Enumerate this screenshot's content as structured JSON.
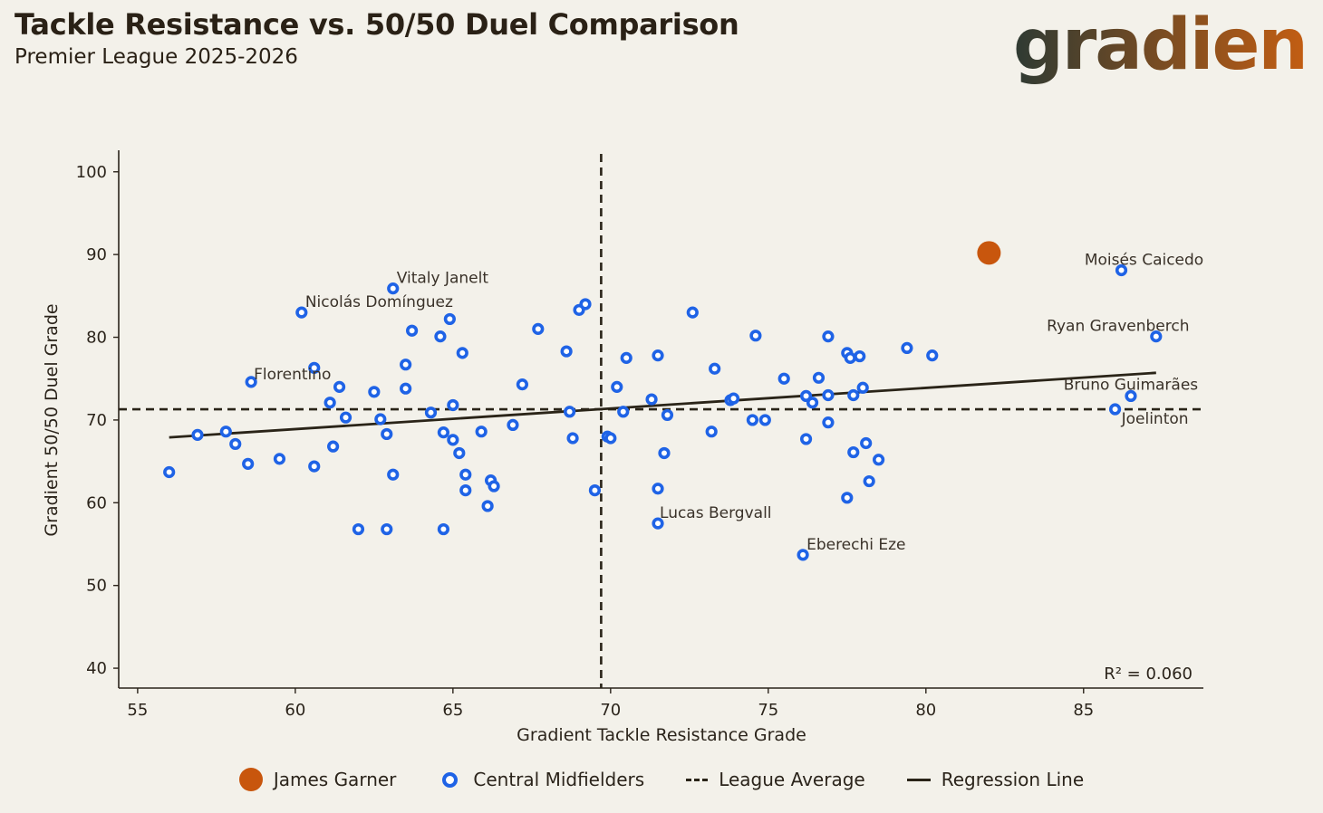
{
  "header": {
    "title": "Tackle Resistance vs. 50/50 Duel Comparison",
    "subtitle": "Premier League 2025-2026",
    "logo_text": "gradient",
    "logo_colors": [
      "#2e3a33",
      "#d4620f"
    ]
  },
  "colors": {
    "highlight": "#c8560d",
    "midfielder": "#1f63e6",
    "reference_line": "#2a2418",
    "background": "#f3f1ea"
  },
  "chart_data": {
    "type": "scatter",
    "xlabel": "Gradient Tackle Resistance Grade",
    "ylabel": "Gradient 50/50 Duel Grade",
    "xlim": [
      54.4,
      88.8
    ],
    "ylim": [
      37.6,
      102.6
    ],
    "xticks": [
      55,
      60,
      65,
      70,
      75,
      80,
      85
    ],
    "yticks": [
      40,
      50,
      60,
      70,
      80,
      90,
      100
    ],
    "league_average": {
      "x": 69.7,
      "y": 71.3
    },
    "regression": {
      "x_start": 56.0,
      "y_start": 67.9,
      "x_end": 87.3,
      "y_end": 75.7
    },
    "r_squared_label": "R² = 0.060",
    "highlight": {
      "name": "James Garner",
      "x": 82.0,
      "y": 90.2
    },
    "series": [
      {
        "name": "Central Midfielders",
        "points": [
          [
            56.0,
            63.7
          ],
          [
            56.9,
            68.2
          ],
          [
            57.8,
            68.6
          ],
          [
            58.1,
            67.1
          ],
          [
            58.5,
            64.7
          ],
          [
            58.6,
            74.6
          ],
          [
            59.5,
            65.3
          ],
          [
            60.2,
            83.0
          ],
          [
            60.6,
            76.3
          ],
          [
            60.6,
            64.4
          ],
          [
            61.1,
            72.1
          ],
          [
            61.2,
            66.8
          ],
          [
            61.4,
            74.0
          ],
          [
            61.6,
            70.3
          ],
          [
            62.0,
            56.8
          ],
          [
            62.5,
            73.4
          ],
          [
            62.7,
            70.1
          ],
          [
            62.9,
            68.3
          ],
          [
            62.9,
            56.8
          ],
          [
            63.1,
            85.9
          ],
          [
            63.1,
            63.4
          ],
          [
            63.5,
            76.7
          ],
          [
            63.5,
            73.8
          ],
          [
            63.7,
            80.8
          ],
          [
            64.3,
            70.9
          ],
          [
            64.6,
            80.1
          ],
          [
            64.7,
            68.5
          ],
          [
            64.7,
            56.8
          ],
          [
            64.9,
            82.2
          ],
          [
            65.0,
            71.8
          ],
          [
            65.0,
            67.6
          ],
          [
            65.2,
            66.0
          ],
          [
            65.3,
            78.1
          ],
          [
            65.4,
            63.4
          ],
          [
            65.4,
            61.5
          ],
          [
            65.9,
            68.6
          ],
          [
            66.1,
            59.6
          ],
          [
            66.2,
            62.7
          ],
          [
            66.3,
            62.0
          ],
          [
            66.9,
            69.4
          ],
          [
            67.2,
            74.3
          ],
          [
            67.7,
            81.0
          ],
          [
            68.6,
            78.3
          ],
          [
            68.7,
            71.0
          ],
          [
            68.8,
            67.8
          ],
          [
            69.0,
            83.3
          ],
          [
            69.2,
            84.0
          ],
          [
            69.5,
            61.5
          ],
          [
            69.9,
            68.0
          ],
          [
            70.0,
            67.8
          ],
          [
            70.2,
            74.0
          ],
          [
            70.4,
            71.0
          ],
          [
            70.5,
            77.5
          ],
          [
            71.3,
            72.5
          ],
          [
            71.5,
            77.8
          ],
          [
            71.5,
            61.7
          ],
          [
            71.5,
            57.5
          ],
          [
            71.7,
            66.0
          ],
          [
            71.8,
            70.6
          ],
          [
            72.6,
            83.0
          ],
          [
            73.2,
            68.6
          ],
          [
            73.3,
            76.2
          ],
          [
            73.8,
            72.4
          ],
          [
            73.9,
            72.6
          ],
          [
            74.5,
            70.0
          ],
          [
            74.6,
            80.2
          ],
          [
            74.9,
            70.0
          ],
          [
            75.5,
            75.0
          ],
          [
            76.1,
            53.7
          ],
          [
            76.2,
            72.9
          ],
          [
            76.2,
            67.7
          ],
          [
            76.4,
            72.1
          ],
          [
            76.6,
            75.1
          ],
          [
            76.9,
            80.1
          ],
          [
            76.9,
            73.0
          ],
          [
            76.9,
            69.7
          ],
          [
            77.5,
            78.1
          ],
          [
            77.5,
            60.6
          ],
          [
            77.6,
            77.5
          ],
          [
            77.7,
            73.0
          ],
          [
            77.7,
            66.1
          ],
          [
            77.9,
            77.7
          ],
          [
            78.0,
            73.9
          ],
          [
            78.1,
            67.2
          ],
          [
            78.2,
            62.6
          ],
          [
            78.5,
            65.2
          ],
          [
            79.4,
            78.7
          ],
          [
            80.2,
            77.8
          ],
          [
            86.0,
            71.3
          ],
          [
            86.2,
            88.1
          ],
          [
            86.5,
            72.9
          ],
          [
            87.3,
            80.1
          ]
        ]
      }
    ],
    "annotations": [
      {
        "label": "Vitaly Janelt",
        "x": 63.1,
        "y": 85.9
      },
      {
        "label": "Nicolás Domínguez",
        "x": 60.2,
        "y": 83.0
      },
      {
        "label": "Florentino",
        "x": 58.6,
        "y": 74.6
      },
      {
        "label": "Lucas Bergvall",
        "x": 71.5,
        "y": 57.5
      },
      {
        "label": "Eberechi Eze",
        "x": 76.1,
        "y": 53.7
      },
      {
        "label": "Moisés Caicedo",
        "x": 86.2,
        "y": 88.1
      },
      {
        "label": "Ryan Gravenberch",
        "x": 87.3,
        "y": 80.1
      },
      {
        "label": "Bruno Guimarães",
        "x": 86.5,
        "y": 72.9
      },
      {
        "label": "Joelinton",
        "x": 86.0,
        "y": 71.3
      }
    ]
  },
  "legend": {
    "items": [
      {
        "label": "James Garner",
        "marker": "filled-orange-circle"
      },
      {
        "label": "Central Midfielders",
        "marker": "blue-ring"
      },
      {
        "label": "League Average",
        "marker": "dashed-line"
      },
      {
        "label": "Regression Line",
        "marker": "solid-line"
      }
    ]
  }
}
